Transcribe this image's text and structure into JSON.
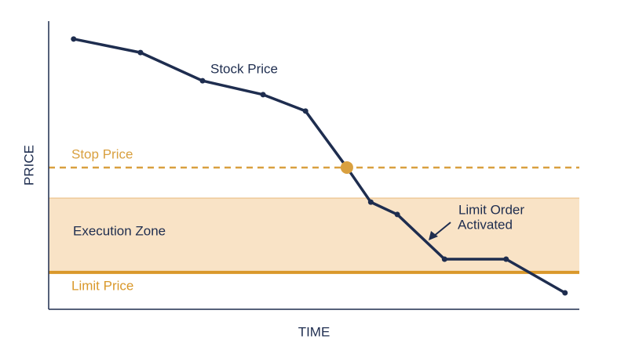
{
  "chart_data": {
    "type": "line",
    "x_label": "TIME",
    "y_label": "PRICE",
    "xlim": [
      0,
      100
    ],
    "ylim": [
      0,
      100
    ],
    "series": [
      {
        "name": "Stock Price",
        "color": "#1e2d4f",
        "x": [
          4.7,
          17.3,
          29.0,
          40.4,
          48.4,
          56.2,
          60.7,
          65.7,
          74.6,
          86.2,
          97.3
        ],
        "values": [
          93.8,
          89.1,
          79.3,
          74.5,
          68.8,
          49.2,
          37.2,
          32.9,
          17.4,
          17.4,
          5.7
        ]
      }
    ],
    "stop_price": {
      "label": "Stop Price",
      "value": 49.2,
      "color": "#d9a03f"
    },
    "limit_price": {
      "label": "Limit Price",
      "value": 12.8,
      "color": "#d9982a"
    },
    "execution_zone": {
      "label": "Execution Zone",
      "range": [
        12.8,
        38.6
      ],
      "color": "#f9e3c6"
    },
    "annotation": {
      "lines": [
        "Limit Order",
        "Activated"
      ]
    }
  }
}
